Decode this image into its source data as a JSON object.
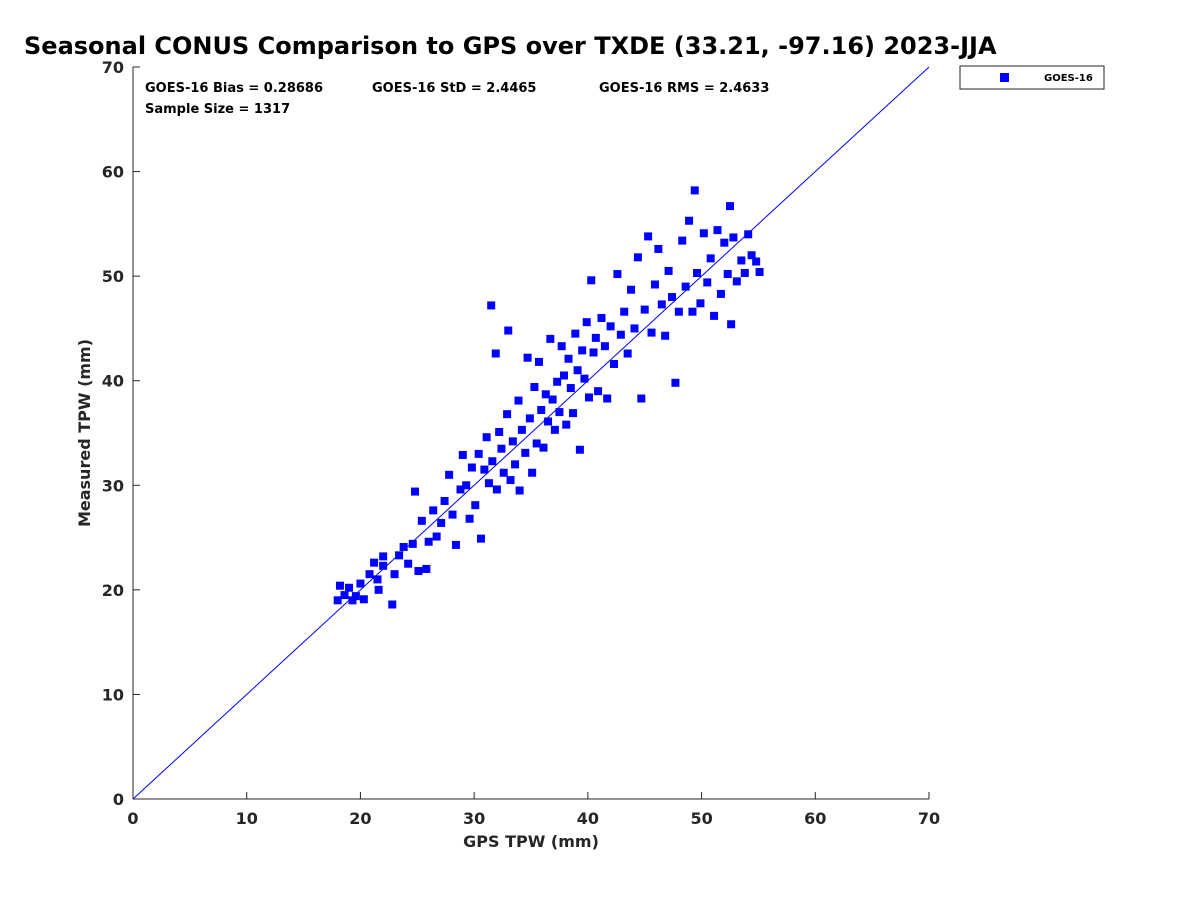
{
  "chart_data": {
    "type": "scatter",
    "title": "Seasonal CONUS Comparison to GPS over TXDE (33.21, -97.16) 2023-JJA",
    "xlabel": "GPS TPW (mm)",
    "ylabel": "Measured TPW (mm)",
    "xlim": [
      0,
      70
    ],
    "ylim": [
      0,
      70
    ],
    "xticks": [
      "0",
      "10",
      "20",
      "30",
      "40",
      "50",
      "60",
      "70"
    ],
    "yticks": [
      "0",
      "10",
      "20",
      "30",
      "40",
      "50",
      "60",
      "70"
    ],
    "grid": false,
    "legend_position": "outside-top-right",
    "reference_line": {
      "x": [
        0,
        70
      ],
      "y": [
        0,
        70
      ],
      "color": "#0000ff"
    },
    "stats": {
      "bias": "GOES-16 Bias = 0.28686",
      "std": "GOES-16 StD = 2.4465",
      "rms": "GOES-16 RMS = 2.4633",
      "sample": "Sample Size = 1317"
    },
    "series": [
      {
        "name": "GOES-16",
        "color": "#0000ff",
        "marker": "square",
        "points": [
          [
            18.0,
            19.0
          ],
          [
            18.2,
            20.4
          ],
          [
            18.6,
            19.5
          ],
          [
            19.0,
            20.2
          ],
          [
            19.3,
            19.0
          ],
          [
            19.6,
            19.4
          ],
          [
            20.0,
            20.6
          ],
          [
            20.3,
            19.1
          ],
          [
            20.8,
            21.5
          ],
          [
            21.2,
            22.6
          ],
          [
            21.5,
            21.0
          ],
          [
            21.6,
            20.0
          ],
          [
            22.0,
            22.3
          ],
          [
            22.0,
            23.2
          ],
          [
            22.8,
            18.6
          ],
          [
            23.0,
            21.5
          ],
          [
            23.4,
            23.3
          ],
          [
            23.8,
            24.1
          ],
          [
            24.2,
            22.5
          ],
          [
            24.6,
            24.4
          ],
          [
            24.8,
            29.4
          ],
          [
            25.1,
            21.8
          ],
          [
            25.4,
            26.6
          ],
          [
            25.8,
            22.0
          ],
          [
            26.0,
            24.6
          ],
          [
            26.4,
            27.6
          ],
          [
            26.7,
            25.1
          ],
          [
            27.1,
            26.4
          ],
          [
            27.4,
            28.5
          ],
          [
            27.8,
            31.0
          ],
          [
            28.1,
            27.2
          ],
          [
            28.4,
            24.3
          ],
          [
            28.8,
            29.6
          ],
          [
            29.0,
            32.9
          ],
          [
            29.3,
            30.0
          ],
          [
            29.6,
            26.8
          ],
          [
            29.8,
            31.7
          ],
          [
            30.1,
            28.1
          ],
          [
            30.4,
            33.0
          ],
          [
            30.6,
            24.9
          ],
          [
            30.9,
            31.5
          ],
          [
            31.1,
            34.6
          ],
          [
            31.3,
            30.2
          ],
          [
            31.5,
            47.2
          ],
          [
            31.6,
            32.3
          ],
          [
            31.9,
            42.6
          ],
          [
            32.0,
            29.6
          ],
          [
            32.2,
            35.1
          ],
          [
            32.4,
            33.5
          ],
          [
            32.6,
            31.2
          ],
          [
            32.9,
            36.8
          ],
          [
            33.0,
            44.8
          ],
          [
            33.2,
            30.5
          ],
          [
            33.4,
            34.2
          ],
          [
            33.6,
            32.0
          ],
          [
            33.9,
            38.1
          ],
          [
            34.0,
            29.5
          ],
          [
            34.2,
            35.3
          ],
          [
            34.5,
            33.1
          ],
          [
            34.7,
            42.2
          ],
          [
            34.9,
            36.4
          ],
          [
            35.1,
            31.2
          ],
          [
            35.3,
            39.4
          ],
          [
            35.5,
            34.0
          ],
          [
            35.7,
            41.8
          ],
          [
            35.9,
            37.2
          ],
          [
            36.1,
            33.6
          ],
          [
            36.3,
            38.7
          ],
          [
            36.5,
            36.1
          ],
          [
            36.7,
            44.0
          ],
          [
            36.9,
            38.2
          ],
          [
            37.1,
            35.3
          ],
          [
            37.3,
            39.9
          ],
          [
            37.5,
            37.0
          ],
          [
            37.7,
            43.3
          ],
          [
            37.9,
            40.5
          ],
          [
            38.1,
            35.8
          ],
          [
            38.3,
            42.1
          ],
          [
            38.5,
            39.3
          ],
          [
            38.7,
            36.9
          ],
          [
            38.9,
            44.5
          ],
          [
            39.1,
            41.0
          ],
          [
            39.3,
            33.4
          ],
          [
            39.5,
            42.9
          ],
          [
            39.7,
            40.2
          ],
          [
            39.9,
            45.6
          ],
          [
            40.1,
            38.4
          ],
          [
            40.3,
            49.6
          ],
          [
            40.5,
            42.7
          ],
          [
            40.7,
            44.1
          ],
          [
            40.9,
            39.0
          ],
          [
            41.2,
            46.0
          ],
          [
            41.5,
            43.3
          ],
          [
            41.7,
            38.3
          ],
          [
            42.0,
            45.2
          ],
          [
            42.3,
            41.6
          ],
          [
            42.6,
            50.2
          ],
          [
            42.9,
            44.4
          ],
          [
            43.2,
            46.6
          ],
          [
            43.5,
            42.6
          ],
          [
            43.8,
            48.7
          ],
          [
            44.1,
            45.0
          ],
          [
            44.4,
            51.8
          ],
          [
            44.7,
            38.3
          ],
          [
            45.0,
            46.8
          ],
          [
            45.3,
            53.8
          ],
          [
            45.6,
            44.6
          ],
          [
            45.9,
            49.2
          ],
          [
            46.2,
            52.6
          ],
          [
            46.5,
            47.3
          ],
          [
            46.8,
            44.3
          ],
          [
            47.1,
            50.5
          ],
          [
            47.4,
            48.0
          ],
          [
            47.7,
            39.8
          ],
          [
            48.0,
            46.6
          ],
          [
            48.3,
            53.4
          ],
          [
            48.6,
            49.0
          ],
          [
            48.9,
            55.3
          ],
          [
            49.2,
            46.6
          ],
          [
            49.4,
            58.2
          ],
          [
            49.6,
            50.3
          ],
          [
            49.9,
            47.4
          ],
          [
            50.2,
            54.1
          ],
          [
            50.5,
            49.4
          ],
          [
            50.8,
            51.7
          ],
          [
            51.1,
            46.2
          ],
          [
            51.4,
            54.4
          ],
          [
            51.7,
            48.3
          ],
          [
            52.0,
            53.2
          ],
          [
            52.3,
            50.2
          ],
          [
            52.6,
            45.4
          ],
          [
            52.8,
            53.7
          ],
          [
            53.1,
            49.5
          ],
          [
            53.5,
            51.5
          ],
          [
            53.8,
            50.3
          ],
          [
            54.1,
            54.0
          ],
          [
            54.4,
            52.0
          ],
          [
            54.8,
            51.4
          ],
          [
            55.1,
            50.4
          ],
          [
            52.5,
            56.7
          ]
        ]
      }
    ]
  }
}
